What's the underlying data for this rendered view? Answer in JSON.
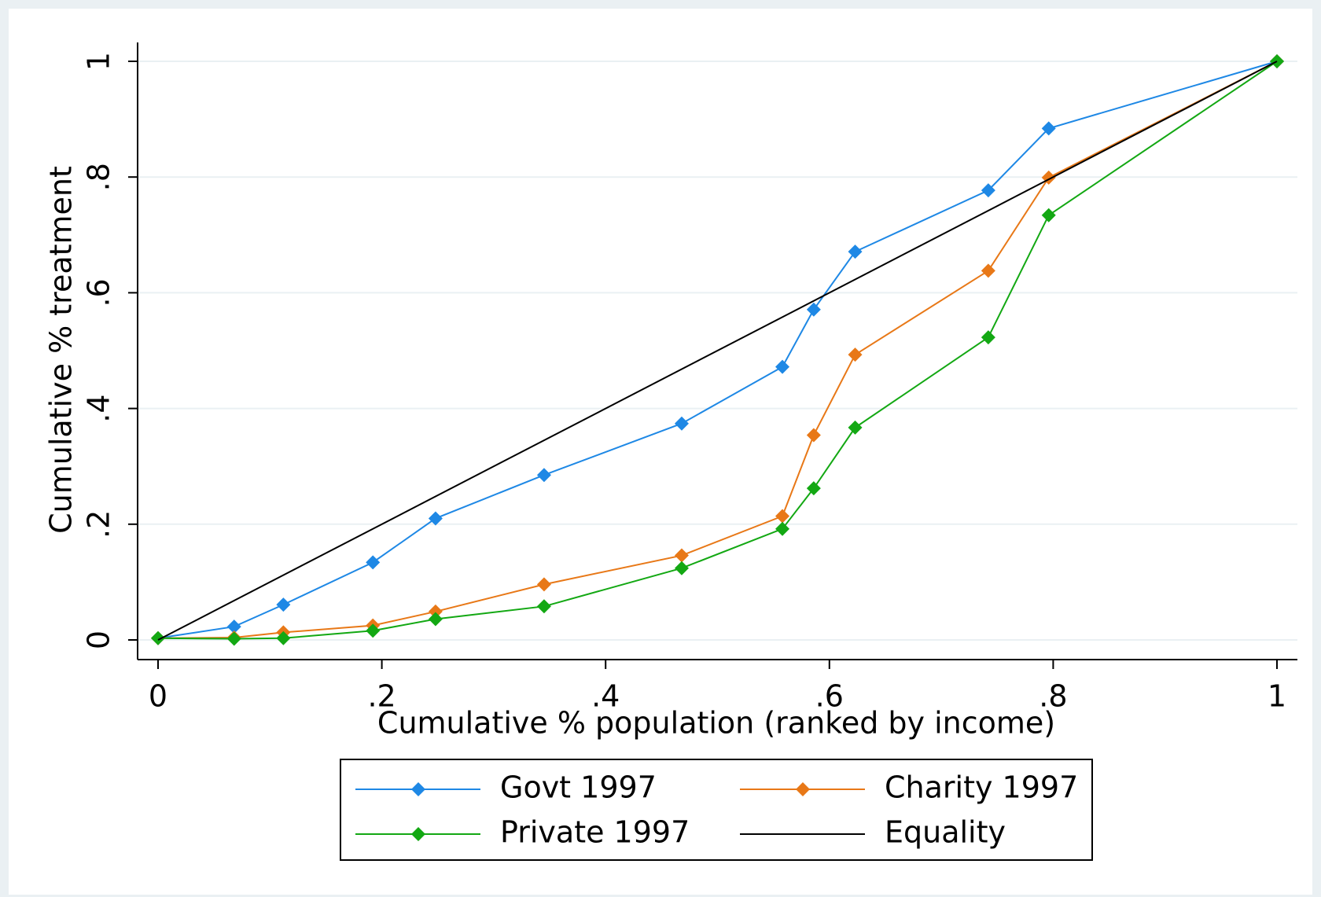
{
  "chart_data": {
    "type": "line",
    "xlabel": "Cumulative % population (ranked by income)",
    "ylabel": "Cumulative % treatment",
    "xlim": [
      0,
      1
    ],
    "ylim": [
      0,
      1
    ],
    "xticks": [
      0,
      {
        "value": 0.2,
        "label": ".2"
      },
      {
        "value": 0.4,
        "label": ".4"
      },
      {
        "value": 0.6,
        "label": ".6"
      },
      {
        "value": 0.8,
        "label": ".8"
      },
      1
    ],
    "yticks": [
      0,
      {
        "value": 0.2,
        "label": ".2"
      },
      {
        "value": 0.4,
        "label": ".4"
      },
      {
        "value": 0.6,
        "label": ".6"
      },
      {
        "value": 0.8,
        "label": ".8"
      },
      1
    ],
    "grid": true,
    "series": [
      {
        "name": "Govt 1997",
        "color": "#1e88e5",
        "marker": "diamond",
        "x": [
          0,
          0.068,
          0.112,
          0.192,
          0.248,
          0.345,
          0.468,
          0.558,
          0.586,
          0.623,
          0.742,
          0.796,
          1
        ],
        "values": [
          0.003,
          0.023,
          0.061,
          0.134,
          0.21,
          0.285,
          0.374,
          0.472,
          0.571,
          0.671,
          0.777,
          0.884,
          1
        ]
      },
      {
        "name": "Charity 1997",
        "color": "#e87817",
        "marker": "diamond",
        "x": [
          0,
          0.068,
          0.112,
          0.192,
          0.248,
          0.345,
          0.468,
          0.558,
          0.586,
          0.623,
          0.742,
          0.796,
          1
        ],
        "values": [
          0.003,
          0.004,
          0.013,
          0.025,
          0.049,
          0.096,
          0.146,
          0.214,
          0.354,
          0.493,
          0.638,
          0.799,
          1
        ]
      },
      {
        "name": "Private 1997",
        "color": "#13a813",
        "marker": "diamond",
        "x": [
          0,
          0.068,
          0.112,
          0.192,
          0.248,
          0.345,
          0.468,
          0.558,
          0.586,
          0.623,
          0.742,
          0.796,
          1
        ],
        "values": [
          0.003,
          0.002,
          0.003,
          0.016,
          0.036,
          0.058,
          0.124,
          0.192,
          0.262,
          0.367,
          0.523,
          0.734,
          1
        ]
      },
      {
        "name": "Equality",
        "color": "#000000",
        "x": [
          0,
          1
        ],
        "values": [
          0,
          1
        ]
      }
    ]
  }
}
